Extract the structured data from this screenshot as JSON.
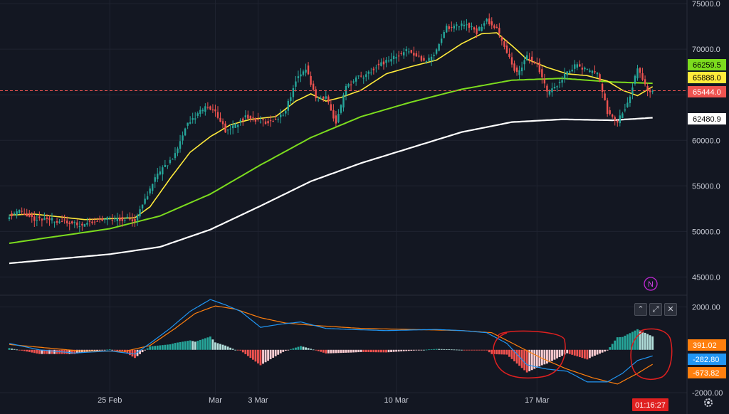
{
  "colors": {
    "background": "#131722",
    "up": "#26a69a",
    "down": "#ef5350",
    "ma_fast": "#ffeb3b",
    "ma_mid": "#7cdc1e",
    "ma_slow": "#ffffff",
    "macd": "#2196f3",
    "signal": "#ff7f0e",
    "annotation": "#e02020"
  },
  "chart_data": [
    {
      "type": "candlestick",
      "panel": "price",
      "ylim": [
        43000,
        75400
      ],
      "yticks": [
        "75000.0",
        "70000.0",
        "65000.0",
        "60000.0",
        "55000.0",
        "50000.0",
        "45000.0"
      ],
      "ytick_values": [
        75000,
        70000,
        65000,
        60000,
        55000,
        50000,
        45000
      ],
      "xticks": [
        "25 Feb",
        "Mar",
        "3 Mar",
        "10 Mar",
        "17 Mar"
      ],
      "xtick_index": [
        40,
        82,
        99,
        154,
        210
      ],
      "close_anchors": [
        [
          0,
          51800
        ],
        [
          4,
          52200
        ],
        [
          10,
          51400
        ],
        [
          18,
          51200
        ],
        [
          28,
          50700
        ],
        [
          36,
          51300
        ],
        [
          44,
          51400
        ],
        [
          50,
          51300
        ],
        [
          54,
          53400
        ],
        [
          58,
          55800
        ],
        [
          62,
          57200
        ],
        [
          66,
          58400
        ],
        [
          70,
          61500
        ],
        [
          74,
          62600
        ],
        [
          78,
          63600
        ],
        [
          82,
          63200
        ],
        [
          86,
          61100
        ],
        [
          90,
          61700
        ],
        [
          94,
          62600
        ],
        [
          98,
          62200
        ],
        [
          102,
          62000
        ],
        [
          106,
          62200
        ],
        [
          110,
          63300
        ],
        [
          114,
          66600
        ],
        [
          118,
          68000
        ],
        [
          122,
          64500
        ],
        [
          126,
          64800
        ],
        [
          130,
          61800
        ],
        [
          134,
          65800
        ],
        [
          138,
          66800
        ],
        [
          142,
          67100
        ],
        [
          146,
          68200
        ],
        [
          150,
          68600
        ],
        [
          154,
          69300
        ],
        [
          158,
          69800
        ],
        [
          162,
          69300
        ],
        [
          166,
          68600
        ],
        [
          170,
          69800
        ],
        [
          174,
          72400
        ],
        [
          178,
          72600
        ],
        [
          182,
          72800
        ],
        [
          186,
          71900
        ],
        [
          190,
          73200
        ],
        [
          194,
          72200
        ],
        [
          198,
          69500
        ],
        [
          202,
          67300
        ],
        [
          206,
          69100
        ],
        [
          210,
          68400
        ],
        [
          214,
          65200
        ],
        [
          218,
          66100
        ],
        [
          222,
          67600
        ],
        [
          226,
          68300
        ],
        [
          230,
          67600
        ],
        [
          234,
          67400
        ],
        [
          238,
          63100
        ],
        [
          242,
          62100
        ],
        [
          246,
          64100
        ],
        [
          250,
          67800
        ],
        [
          252,
          66800
        ],
        [
          254,
          65600
        ],
        [
          256,
          65444
        ]
      ],
      "ma_fast_anchors": [
        [
          0,
          51800
        ],
        [
          10,
          51900
        ],
        [
          20,
          51600
        ],
        [
          30,
          51300
        ],
        [
          40,
          51400
        ],
        [
          50,
          51500
        ],
        [
          56,
          52700
        ],
        [
          64,
          55800
        ],
        [
          72,
          58700
        ],
        [
          80,
          60400
        ],
        [
          88,
          61700
        ],
        [
          96,
          62300
        ],
        [
          106,
          62600
        ],
        [
          114,
          64300
        ],
        [
          120,
          65100
        ],
        [
          126,
          64300
        ],
        [
          132,
          64700
        ],
        [
          140,
          65500
        ],
        [
          150,
          67300
        ],
        [
          160,
          68100
        ],
        [
          170,
          68800
        ],
        [
          180,
          70600
        ],
        [
          188,
          71700
        ],
        [
          194,
          71800
        ],
        [
          200,
          70400
        ],
        [
          206,
          68900
        ],
        [
          214,
          68000
        ],
        [
          222,
          67300
        ],
        [
          230,
          67100
        ],
        [
          238,
          66500
        ],
        [
          244,
          65500
        ],
        [
          250,
          64900
        ],
        [
          256,
          65888
        ]
      ],
      "ma_mid_anchors": [
        [
          0,
          48700
        ],
        [
          40,
          50300
        ],
        [
          60,
          51700
        ],
        [
          80,
          54100
        ],
        [
          100,
          57300
        ],
        [
          120,
          60300
        ],
        [
          140,
          62600
        ],
        [
          160,
          64200
        ],
        [
          180,
          65600
        ],
        [
          200,
          66600
        ],
        [
          220,
          66800
        ],
        [
          240,
          66400
        ],
        [
          256,
          66259.5
        ]
      ],
      "ma_slow_anchors": [
        [
          0,
          46500
        ],
        [
          40,
          47500
        ],
        [
          60,
          48300
        ],
        [
          80,
          50200
        ],
        [
          100,
          52800
        ],
        [
          120,
          55500
        ],
        [
          140,
          57500
        ],
        [
          160,
          59200
        ],
        [
          180,
          60900
        ],
        [
          200,
          62000
        ],
        [
          220,
          62300
        ],
        [
          240,
          62200
        ],
        [
          256,
          62480.9
        ]
      ],
      "current_price": 65444.0,
      "labels": [
        {
          "key": "ma_mid",
          "text": "66259.5",
          "value": 66259.5
        },
        {
          "key": "ma_fast",
          "text": "65888.0",
          "value": 65888.0
        },
        {
          "key": "price",
          "text": "65444.0",
          "value": 65444.0
        },
        {
          "key": "ma_slow",
          "text": "62480.9",
          "value": 62480.9
        }
      ]
    },
    {
      "type": "macd",
      "panel": "indicator",
      "ylim": [
        -2100,
        2550
      ],
      "yticks": [
        "2000.00",
        "-2000.00"
      ],
      "ytick_values": [
        2000,
        -2000
      ],
      "macd_anchors": [
        [
          0,
          300
        ],
        [
          12,
          0
        ],
        [
          26,
          -150
        ],
        [
          40,
          -50
        ],
        [
          50,
          -200
        ],
        [
          56,
          300
        ],
        [
          64,
          1000
        ],
        [
          72,
          1800
        ],
        [
          80,
          2350
        ],
        [
          86,
          2100
        ],
        [
          92,
          1800
        ],
        [
          100,
          1050
        ],
        [
          108,
          1200
        ],
        [
          116,
          1300
        ],
        [
          126,
          1000
        ],
        [
          136,
          950
        ],
        [
          150,
          900
        ],
        [
          170,
          950
        ],
        [
          180,
          900
        ],
        [
          190,
          800
        ],
        [
          198,
          300
        ],
        [
          206,
          -700
        ],
        [
          214,
          -900
        ],
        [
          222,
          -1000
        ],
        [
          230,
          -1500
        ],
        [
          238,
          -1500
        ],
        [
          244,
          -1100
        ],
        [
          250,
          -500
        ],
        [
          256,
          -282.8
        ]
      ],
      "signal_anchors": [
        [
          0,
          250
        ],
        [
          14,
          100
        ],
        [
          28,
          -50
        ],
        [
          46,
          -70
        ],
        [
          56,
          200
        ],
        [
          66,
          1000
        ],
        [
          74,
          1700
        ],
        [
          82,
          2050
        ],
        [
          90,
          1900
        ],
        [
          100,
          1500
        ],
        [
          110,
          1250
        ],
        [
          120,
          1150
        ],
        [
          140,
          1000
        ],
        [
          160,
          950
        ],
        [
          180,
          900
        ],
        [
          192,
          800
        ],
        [
          202,
          200
        ],
        [
          212,
          -400
        ],
        [
          222,
          -900
        ],
        [
          232,
          -1300
        ],
        [
          242,
          -1600
        ],
        [
          250,
          -1100
        ],
        [
          256,
          -673.82
        ]
      ],
      "labels": [
        {
          "key": "histogram",
          "text": "391.02",
          "value": 391.02
        },
        {
          "key": "macd",
          "text": "-282.80",
          "value": -282.8
        },
        {
          "key": "signal",
          "text": "-673.82",
          "value": -673.82
        }
      ]
    }
  ],
  "indicator_badge": "N",
  "controls": {
    "collapse": "⌃",
    "maximize": "⤢",
    "close": "✕"
  },
  "countdown": "01:16:27"
}
